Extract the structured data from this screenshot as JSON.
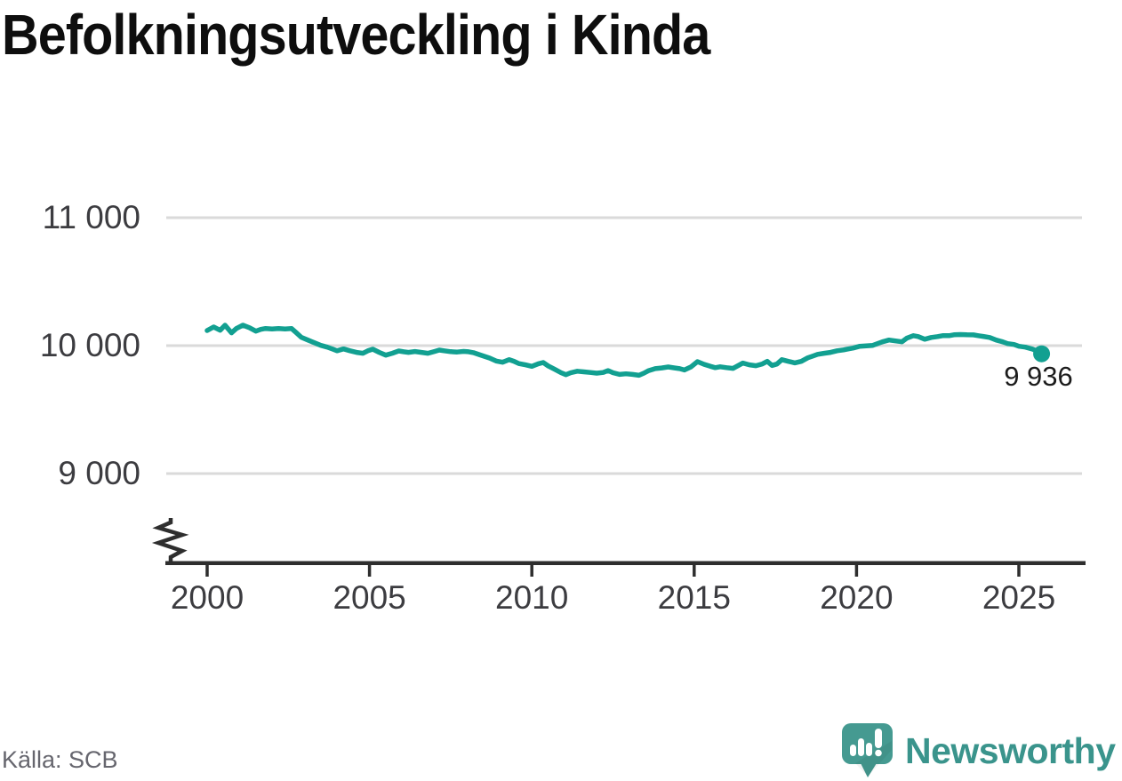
{
  "title": "Befolkningsutveckling i Kinda",
  "source": "Källa: SCB",
  "branding": {
    "logo_text": "Newsworthy",
    "logo_icon": "speech-bubble-bar-chart-icon",
    "logo_color": "#459a91",
    "wordmark_color": "#3a948c"
  },
  "chart_data": {
    "type": "line",
    "title": "Befolkningsutveckling i Kinda",
    "xlabel": "",
    "ylabel": "",
    "xlim": [
      1998.7,
      2027.0
    ],
    "ylim": [
      9000,
      11000
    ],
    "y_axis_break": true,
    "grid": "horizontal",
    "line_color": "#12a091",
    "grid_color": "#dadada",
    "axis_color": "#2e2e2e",
    "tick_label_color": "#3c3c40",
    "end_point_label": "9 936",
    "end_point_value": 9936,
    "x_ticks": {
      "years": [
        2000,
        2005,
        2010,
        2015,
        2020,
        2025
      ],
      "labels": [
        "2000",
        "2005",
        "2010",
        "2015",
        "2020",
        "2025"
      ]
    },
    "y_ticks": {
      "values": [
        11000,
        10000,
        9000
      ],
      "labels": [
        "11 000",
        "10 000",
        "9 000"
      ]
    },
    "series": [
      {
        "x": [
          2000.0,
          2000.2,
          2000.4,
          2000.55,
          2000.75,
          2000.9,
          2001.1,
          2001.3,
          2001.5,
          2001.65,
          2001.8,
          2002.0,
          2002.2,
          2002.4,
          2002.6,
          2002.75,
          2002.9,
          2003.1,
          2003.3,
          2003.5,
          2003.7,
          2003.85,
          2004.0,
          2004.2,
          2004.4,
          2004.6,
          2004.8,
          2004.95,
          2005.1,
          2005.3,
          2005.5,
          2005.7,
          2005.9,
          2006.05,
          2006.2,
          2006.4,
          2006.6,
          2006.8,
          2007.0,
          2007.15,
          2007.3,
          2007.5,
          2007.7,
          2007.9,
          2008.05,
          2008.2,
          2008.4,
          2008.7,
          2008.9,
          2009.1,
          2009.3,
          2009.45,
          2009.6,
          2009.8,
          2010.0,
          2010.2,
          2010.35,
          2010.5,
          2010.7,
          2010.9,
          2011.05,
          2011.2,
          2011.4,
          2011.6,
          2011.8,
          2012.0,
          2012.2,
          2012.35,
          2012.5,
          2012.7,
          2012.9,
          2013.1,
          2013.3,
          2013.45,
          2013.6,
          2013.8,
          2014.0,
          2014.2,
          2014.4,
          2014.55,
          2014.7,
          2014.9,
          2015.1,
          2015.3,
          2015.5,
          2015.65,
          2015.8,
          2016.0,
          2016.2,
          2016.35,
          2016.5,
          2016.7,
          2016.9,
          2017.1,
          2017.25,
          2017.4,
          2017.55,
          2017.7,
          2017.9,
          2018.1,
          2018.3,
          2018.5,
          2018.65,
          2018.8,
          2019.0,
          2019.2,
          2019.4,
          2019.6,
          2019.75,
          2019.9,
          2020.1,
          2020.5,
          2020.65,
          2020.8,
          2021.0,
          2021.2,
          2021.4,
          2021.55,
          2021.75,
          2021.9,
          2022.1,
          2022.3,
          2022.5,
          2022.65,
          2022.85,
          2023.0,
          2023.2,
          2023.4,
          2023.6,
          2023.75,
          2023.9,
          2024.1,
          2024.3,
          2024.5,
          2024.65,
          2024.85,
          2025.0,
          2025.2,
          2025.4,
          2025.55,
          2025.7
        ],
        "y": [
          10118,
          10146,
          10120,
          10160,
          10100,
          10134,
          10160,
          10140,
          10113,
          10127,
          10134,
          10130,
          10134,
          10130,
          10133,
          10100,
          10065,
          10044,
          10023,
          10002,
          9988,
          9974,
          9960,
          9974,
          9960,
          9947,
          9940,
          9960,
          9972,
          9947,
          9926,
          9940,
          9958,
          9952,
          9947,
          9954,
          9947,
          9940,
          9954,
          9965,
          9960,
          9953,
          9950,
          9955,
          9952,
          9945,
          9928,
          9903,
          9880,
          9870,
          9890,
          9878,
          9860,
          9850,
          9838,
          9858,
          9868,
          9842,
          9815,
          9788,
          9773,
          9788,
          9800,
          9795,
          9790,
          9785,
          9790,
          9805,
          9788,
          9775,
          9780,
          9775,
          9768,
          9785,
          9805,
          9820,
          9826,
          9833,
          9826,
          9820,
          9810,
          9833,
          9875,
          9854,
          9838,
          9828,
          9835,
          9828,
          9822,
          9843,
          9864,
          9850,
          9843,
          9857,
          9877,
          9845,
          9856,
          9890,
          9877,
          9865,
          9877,
          9905,
          9918,
          9932,
          9940,
          9947,
          9960,
          9967,
          9974,
          9981,
          9995,
          10002,
          10016,
          10030,
          10044,
          10037,
          10030,
          10058,
          10078,
          10071,
          10050,
          10064,
          10071,
          10078,
          10078,
          10085,
          10087,
          10085,
          10084,
          10078,
          10072,
          10064,
          10044,
          10030,
          10016,
          10009,
          9995,
          9988,
          9974,
          9960,
          9936
        ]
      }
    ]
  }
}
